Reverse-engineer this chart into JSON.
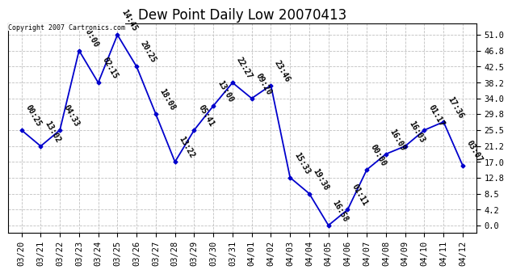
{
  "title": "Dew Point Daily Low 20070413",
  "copyright": "Copyright 2007 Cartronics.com",
  "line_color": "#0000cc",
  "background_color": "#ffffff",
  "grid_color": "#c0c0c0",
  "dates": [
    "03/20",
    "03/21",
    "03/22",
    "03/23",
    "03/24",
    "03/25",
    "03/26",
    "03/27",
    "03/28",
    "03/29",
    "03/30",
    "03/31",
    "04/01",
    "04/02",
    "04/03",
    "04/04",
    "04/05",
    "04/06",
    "04/07",
    "04/08",
    "04/09",
    "04/10",
    "04/11",
    "04/12"
  ],
  "values": [
    25.5,
    21.2,
    25.5,
    46.8,
    38.2,
    51.0,
    42.5,
    29.8,
    17.0,
    25.5,
    32.0,
    38.2,
    34.0,
    37.5,
    12.8,
    8.5,
    0.0,
    4.2,
    14.9,
    19.1,
    21.2,
    25.5,
    27.7,
    16.0
  ],
  "labels": [
    "00:25",
    "13:02",
    "04:33",
    "00:00",
    "02:15",
    "14:45",
    "20:25",
    "18:08",
    "13:22",
    "05:41",
    "13:00",
    "22:27",
    "09:20",
    "23:46",
    "15:33",
    "19:38",
    "16:58",
    "01:11",
    "00:00",
    "16:09",
    "16:03",
    "01:17",
    "17:36",
    "03:07"
  ],
  "yticks": [
    0.0,
    4.2,
    8.5,
    12.8,
    17.0,
    21.2,
    25.5,
    29.8,
    34.0,
    38.2,
    42.5,
    46.8,
    51.0
  ],
  "ylim": [
    -2.0,
    54.0
  ],
  "title_fontsize": 12,
  "label_fontsize": 7,
  "tick_fontsize": 7.5,
  "label_rotation": -60
}
